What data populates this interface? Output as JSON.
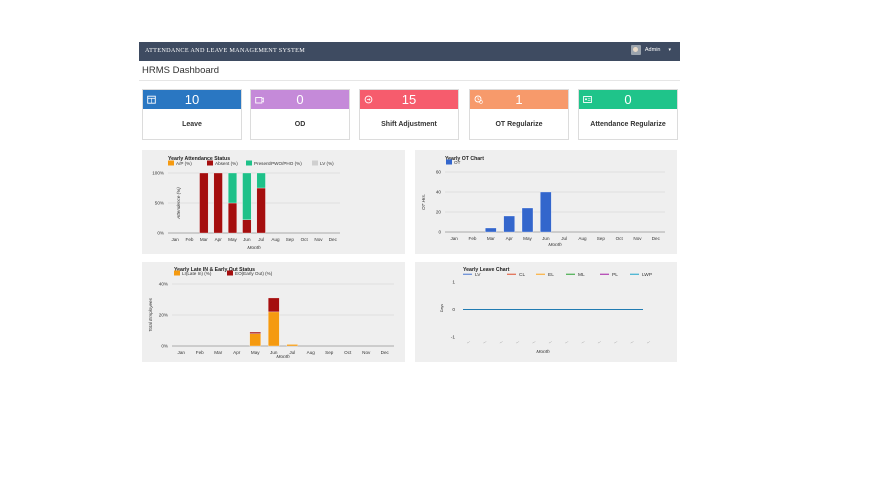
{
  "header": {
    "app_title": "ATTENDANCE AND LEAVE MANAGEMENT SYSTEM",
    "user_name": "Admin",
    "caret": "▾"
  },
  "page_title": "HRMS Dashboard",
  "cards": [
    {
      "value": "10",
      "label": "Leave",
      "color": "#2a77c2",
      "icon": "calendar-icon"
    },
    {
      "value": "0",
      "label": "OD",
      "color": "#c58ad9",
      "icon": "briefcase-icon"
    },
    {
      "value": "15",
      "label": "Shift Adjustment",
      "color": "#f65c6d",
      "icon": "shift-icon"
    },
    {
      "value": "1",
      "label": "OT Regularize",
      "color": "#f79a6b",
      "icon": "clock-icon"
    },
    {
      "value": "0",
      "label": "Attendance Regularize",
      "color": "#1fc48a",
      "icon": "id-card-icon"
    }
  ],
  "chart_data": [
    {
      "type": "bar",
      "title": "Yearly Attendance Status",
      "xlabel": "Month",
      "ylabel": "Attendence (%)",
      "categories": [
        "Jan",
        "Feb",
        "Mar",
        "Apr",
        "May",
        "Jun",
        "Jul",
        "Aug",
        "Sep",
        "Oct",
        "Nov",
        "Dec"
      ],
      "yticks": [
        "0%",
        "50%",
        "100%"
      ],
      "ylim": [
        0,
        100
      ],
      "stacked": true,
      "series": [
        {
          "name": "A/P (%)",
          "color": "#f59a10",
          "values": [
            0,
            0,
            0,
            0,
            0,
            0,
            0,
            0,
            0,
            0,
            0,
            0
          ]
        },
        {
          "name": "Absent (%)",
          "color": "#a50e0e",
          "values": [
            0,
            0,
            100,
            100,
            50,
            22,
            75,
            0,
            0,
            0,
            0,
            0
          ]
        },
        {
          "name": "Present/PWO/PHO (%)",
          "color": "#1ec189",
          "values": [
            0,
            0,
            0,
            0,
            50,
            78,
            25,
            0,
            0,
            0,
            0,
            0
          ]
        },
        {
          "name": "LV (%)",
          "color": "#cfcfcf",
          "values": [
            0,
            0,
            0,
            0,
            0,
            0,
            0,
            0,
            0,
            0,
            0,
            0
          ]
        }
      ],
      "legend": "top"
    },
    {
      "type": "bar",
      "title": "Yearly OT Chart",
      "xlabel": "Month",
      "ylabel": "OT Hrs.",
      "categories": [
        "Jan",
        "Feb",
        "Mar",
        "Apr",
        "May",
        "Jun",
        "Jul",
        "Aug",
        "Sep",
        "Oct",
        "Nov",
        "Dec"
      ],
      "yticks": [
        "0",
        "20",
        "40",
        "60"
      ],
      "ylim": [
        0,
        60
      ],
      "series": [
        {
          "name": "OT",
          "color": "#3366cc",
          "values": [
            0,
            0,
            4,
            16,
            24,
            40,
            0,
            0,
            0,
            0,
            0,
            0
          ]
        }
      ],
      "legend": "top"
    },
    {
      "type": "bar",
      "title": "Yearly Late IN & Early Out Status",
      "xlabel": "Month",
      "ylabel": "Total Employees",
      "categories": [
        "Jan",
        "Feb",
        "Mar",
        "Apr",
        "May",
        "Jun",
        "Jul",
        "Aug",
        "Sep",
        "Oct",
        "Nov",
        "Dec"
      ],
      "yticks": [
        "0%",
        "20%",
        "40%"
      ],
      "ylim": [
        0,
        40
      ],
      "stacked": true,
      "series": [
        {
          "name": "LI(Late In) (%)",
          "color": "#f59a10",
          "values": [
            0,
            0,
            0,
            0,
            8,
            22,
            1,
            0,
            0,
            0,
            0,
            0
          ]
        },
        {
          "name": "EO(Early Out) (%)",
          "color": "#a50e0e",
          "values": [
            0,
            0,
            0,
            0,
            1,
            9,
            0,
            0,
            0,
            0,
            0,
            0
          ]
        }
      ],
      "legend": "top"
    },
    {
      "type": "line",
      "title": "Yearly Leave Chart",
      "xlabel": "Month",
      "ylabel": "Days",
      "yticks": [
        "-1",
        "0",
        "1"
      ],
      "ylim": [
        -1,
        1
      ],
      "xticks": [
        "—",
        "—",
        "—",
        "—",
        "—",
        "—",
        "—",
        "—",
        "—",
        "—",
        "—",
        "—"
      ],
      "series": [
        {
          "name": "LV",
          "color": "#3366cc",
          "values": [
            0,
            0,
            0,
            0,
            0,
            0,
            0,
            0,
            0,
            0,
            0,
            0
          ]
        },
        {
          "name": "CL",
          "color": "#dc3912",
          "values": [
            0,
            0,
            0,
            0,
            0,
            0,
            0,
            0,
            0,
            0,
            0,
            0
          ]
        },
        {
          "name": "EL",
          "color": "#ff9900",
          "values": [
            0,
            0,
            0,
            0,
            0,
            0,
            0,
            0,
            0,
            0,
            0,
            0
          ]
        },
        {
          "name": "ML",
          "color": "#109618",
          "values": [
            0,
            0,
            0,
            0,
            0,
            0,
            0,
            0,
            0,
            0,
            0,
            0
          ]
        },
        {
          "name": "PL",
          "color": "#990099",
          "values": [
            0,
            0,
            0,
            0,
            0,
            0,
            0,
            0,
            0,
            0,
            0,
            0
          ]
        },
        {
          "name": "LWP",
          "color": "#0099c6",
          "values": [
            0,
            0,
            0,
            0,
            0,
            0,
            0,
            0,
            0,
            0,
            0,
            0
          ]
        }
      ],
      "legend": "top"
    }
  ]
}
